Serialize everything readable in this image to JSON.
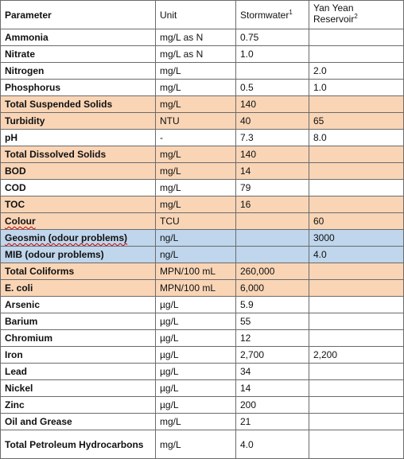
{
  "header": {
    "parameter": "Parameter",
    "unit": "Unit",
    "stormwater": "Stormwater",
    "stormwater_sup": "1",
    "yanyean": "Yan Yean Reservoir",
    "yanyean_sup": "2"
  },
  "rows": [
    {
      "parameter": "Ammonia",
      "unit": "mg/L as N",
      "stormwater": "0.75",
      "yanyean": ""
    },
    {
      "parameter": "Nitrate",
      "unit": "mg/L as N",
      "stormwater": "1.0",
      "yanyean": ""
    },
    {
      "parameter": "Nitrogen",
      "unit": "mg/L",
      "stormwater": "",
      "yanyean": "2.0"
    },
    {
      "parameter": "Phosphorus",
      "unit": "mg/L",
      "stormwater": "0.5",
      "yanyean": "1.0"
    },
    {
      "parameter": "Total Suspended Solids",
      "unit": "mg/L",
      "stormwater": "140",
      "yanyean": ""
    },
    {
      "parameter": "Turbidity",
      "unit": "NTU",
      "stormwater": "40",
      "yanyean": "65"
    },
    {
      "parameter": "pH",
      "unit": "-",
      "stormwater": "7.3",
      "yanyean": "8.0"
    },
    {
      "parameter": "Total Dissolved Solids",
      "unit": "mg/L",
      "stormwater": "140",
      "yanyean": ""
    },
    {
      "parameter": "BOD",
      "unit": "mg/L",
      "stormwater": "14",
      "yanyean": ""
    },
    {
      "parameter": "COD",
      "unit": "mg/L",
      "stormwater": "79",
      "yanyean": ""
    },
    {
      "parameter": "TOC",
      "unit": "mg/L",
      "stormwater": "16",
      "yanyean": ""
    },
    {
      "parameter": "Colour",
      "unit": "TCU",
      "stormwater": "",
      "yanyean": "60"
    },
    {
      "parameter": "Geosmin (odour problems)",
      "unit": "ng/L",
      "stormwater": "",
      "yanyean": "3000"
    },
    {
      "parameter": "MIB (odour problems)",
      "unit": "ng/L",
      "stormwater": "",
      "yanyean": "4.0"
    },
    {
      "parameter": "Total Coliforms",
      "unit": "MPN/100 mL",
      "stormwater": "260,000",
      "yanyean": ""
    },
    {
      "parameter": "E. coli",
      "unit": "MPN/100 mL",
      "stormwater": "6,000",
      "yanyean": ""
    },
    {
      "parameter": "Arsenic",
      "unit": "µg/L",
      "stormwater": "5.9",
      "yanyean": ""
    },
    {
      "parameter": "Barium",
      "unit": "µg/L",
      "stormwater": "55",
      "yanyean": ""
    },
    {
      "parameter": "Chromium",
      "unit": "µg/L",
      "stormwater": "12",
      "yanyean": ""
    },
    {
      "parameter": "Iron",
      "unit": "µg/L",
      "stormwater": "2,700",
      "yanyean": "2,200"
    },
    {
      "parameter": "Lead",
      "unit": "µg/L",
      "stormwater": "34",
      "yanyean": ""
    },
    {
      "parameter": "Nickel",
      "unit": "µg/L",
      "stormwater": "14",
      "yanyean": ""
    },
    {
      "parameter": "Zinc",
      "unit": "µg/L",
      "stormwater": "200",
      "yanyean": ""
    },
    {
      "parameter": "Oil and Grease",
      "unit": "mg/L",
      "stormwater": "21",
      "yanyean": ""
    },
    {
      "parameter": "Total Petroleum Hydrocarbons",
      "unit": "mg/L",
      "stormwater": "4.0",
      "yanyean": ""
    }
  ],
  "colors": {
    "highlight_orange": "#f9d5b6",
    "highlight_blue": "#bfd6ec",
    "border": "#6b6b6b"
  }
}
